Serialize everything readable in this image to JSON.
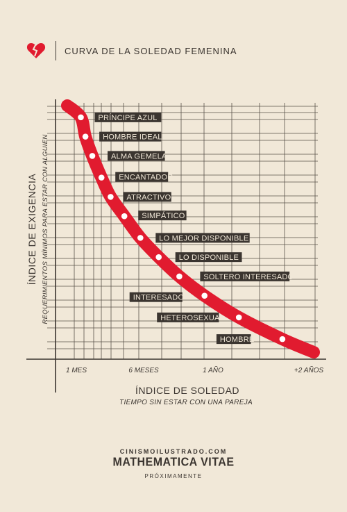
{
  "header": {
    "title": "CURVA DE LA SOLEDAD FEMENINA",
    "logo_icon": "broken-heart-icon",
    "accent_color": "#e11b2f"
  },
  "chart_data": {
    "type": "line",
    "title": "CURVA DE LA SOLEDAD FEMENINA",
    "xlabel": "ÍNDICE DE SOLEDAD",
    "xlabel_sub": "TIEMPO SIN ESTAR CON UNA PAREJA",
    "ylabel": "ÍNDICE DE EXIGENCIA",
    "ylabel_sub": "REQUERIMIENTOS MÍNIMOS PARA ESTAR CON ALGUIEN",
    "x_ticks": [
      "1 MES",
      "6 MESES",
      "1 AÑO",
      "+2 AÑOS"
    ],
    "grid": true,
    "series_color": "#e11b2f",
    "points": [
      {
        "label": "PRÍNCIPE AZUL",
        "x": 0.05,
        "y": 0.96
      },
      {
        "label": "HOMBRE IDEAL",
        "x": 0.07,
        "y": 0.88
      },
      {
        "label": "ALMA GEMELA",
        "x": 0.1,
        "y": 0.8
      },
      {
        "label": "ENCANTADOR",
        "x": 0.14,
        "y": 0.71
      },
      {
        "label": "ATRACTIVO",
        "x": 0.18,
        "y": 0.63
      },
      {
        "label": "SIMPÁTICO",
        "x": 0.24,
        "y": 0.55
      },
      {
        "label": "LO MEJOR DISPONIBLE",
        "x": 0.31,
        "y": 0.46
      },
      {
        "label": "LO DISPONIBLE",
        "x": 0.39,
        "y": 0.38
      },
      {
        "label": "SOLTERO INTERESADO",
        "x": 0.48,
        "y": 0.3
      },
      {
        "label": "INTERESADO",
        "x": 0.59,
        "y": 0.22
      },
      {
        "label": "HETEROSEXUAL",
        "x": 0.74,
        "y": 0.13
      },
      {
        "label": "HOMBRE",
        "x": 0.93,
        "y": 0.04
      }
    ]
  },
  "footer": {
    "site": "CINISMOILUSTRADO.COM",
    "brand": "MATHEMATICA VITAE",
    "status": "PRÓXIMAMENTE"
  }
}
